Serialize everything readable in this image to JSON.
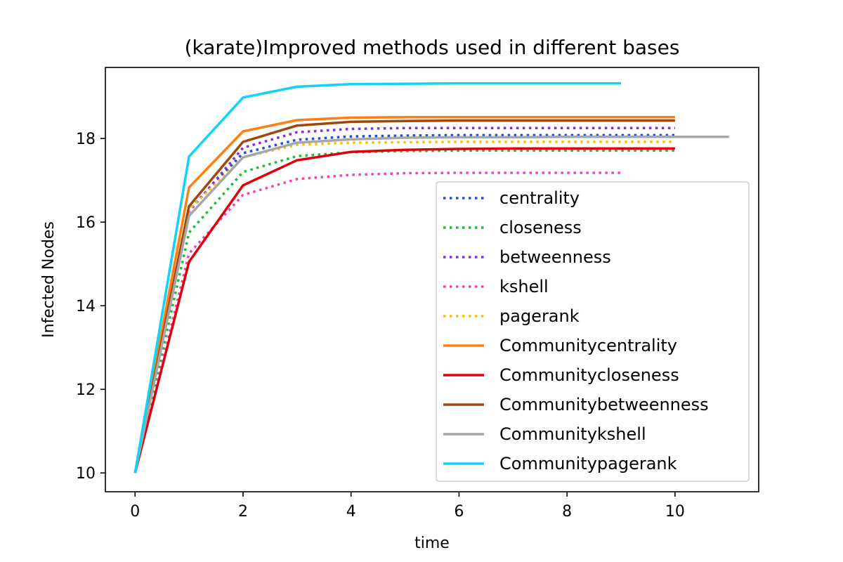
{
  "chart_data": {
    "type": "line",
    "title": "(karate)Improved methods used in different bases",
    "xlabel": "time",
    "ylabel": "Infected Nodes",
    "xlim": [
      -0.55,
      11.55
    ],
    "ylim": [
      9.55,
      19.7
    ],
    "xticks": [
      0,
      2,
      4,
      6,
      8,
      10
    ],
    "yticks": [
      10,
      12,
      14,
      16,
      18
    ],
    "grid": false,
    "legend_position": "lower-right",
    "series": [
      {
        "name": "centrality",
        "color": "#1f4fe0",
        "style": "dotted",
        "x": [
          0,
          1,
          2,
          3,
          4,
          5,
          6,
          7,
          8,
          9,
          10
        ],
        "y": [
          10.0,
          16.3,
          17.65,
          17.97,
          18.05,
          18.07,
          18.08,
          18.08,
          18.08,
          18.08,
          18.08
        ]
      },
      {
        "name": "closeness",
        "color": "#22bb33",
        "style": "dotted",
        "x": [
          0,
          1,
          2,
          3,
          4,
          5,
          6,
          7,
          8,
          9,
          10
        ],
        "y": [
          10.0,
          15.75,
          17.2,
          17.58,
          17.67,
          17.7,
          17.71,
          17.71,
          17.71,
          17.71,
          17.71
        ]
      },
      {
        "name": "betweenness",
        "color": "#8a2be2",
        "style": "dotted",
        "x": [
          0,
          1,
          2,
          3,
          4,
          5,
          6,
          7,
          8,
          9,
          10
        ],
        "y": [
          10.0,
          16.25,
          17.78,
          18.15,
          18.23,
          18.25,
          18.25,
          18.25,
          18.25,
          18.25,
          18.25
        ]
      },
      {
        "name": "kshell",
        "color": "#ee44bb",
        "style": "dotted",
        "x": [
          0,
          1,
          2,
          3,
          4,
          5,
          6,
          7,
          8,
          9
        ],
        "y": [
          10.0,
          15.25,
          16.65,
          17.03,
          17.13,
          17.17,
          17.18,
          17.18,
          17.18,
          17.18
        ]
      },
      {
        "name": "pagerank",
        "color": "#ffc000",
        "style": "dotted",
        "x": [
          0,
          1,
          2,
          3,
          4,
          5,
          6,
          7,
          8,
          9,
          10
        ],
        "y": [
          10.0,
          16.3,
          17.55,
          17.85,
          17.9,
          17.91,
          17.92,
          17.92,
          17.92,
          17.92,
          17.92
        ]
      },
      {
        "name": "Communitycentrality",
        "color": "#ff7f0e",
        "style": "solid",
        "x": [
          0,
          1,
          2,
          3,
          4,
          5,
          6,
          7,
          8,
          9,
          10
        ],
        "y": [
          10.0,
          16.83,
          18.17,
          18.44,
          18.5,
          18.51,
          18.51,
          18.51,
          18.51,
          18.51,
          18.51
        ]
      },
      {
        "name": "Communitycloseness",
        "color": "#e0000b",
        "style": "solid",
        "x": [
          0,
          1,
          2,
          3,
          4,
          5,
          6,
          7,
          8,
          9,
          10
        ],
        "y": [
          10.0,
          15.05,
          16.88,
          17.48,
          17.68,
          17.73,
          17.75,
          17.76,
          17.76,
          17.76,
          17.76
        ]
      },
      {
        "name": "Communitybetweenness",
        "color": "#a0460a",
        "style": "solid",
        "x": [
          0,
          1,
          2,
          3,
          4,
          5,
          6,
          7,
          8,
          9,
          10
        ],
        "y": [
          10.0,
          16.38,
          17.92,
          18.31,
          18.4,
          18.42,
          18.43,
          18.43,
          18.43,
          18.43,
          18.43
        ]
      },
      {
        "name": "Communitykshell",
        "color": "#a6a6a6",
        "style": "solid",
        "x": [
          0,
          1,
          2,
          3,
          4,
          5,
          6,
          7,
          8,
          9,
          10,
          11
        ],
        "y": [
          10.0,
          16.15,
          17.55,
          17.9,
          17.98,
          18.02,
          18.03,
          18.03,
          18.04,
          18.04,
          18.04,
          18.04
        ]
      },
      {
        "name": "Communitypagerank",
        "color": "#11d3f5",
        "style": "solid",
        "x": [
          0,
          1,
          2,
          3,
          4,
          5,
          6,
          7,
          8,
          9
        ],
        "y": [
          10.0,
          17.57,
          18.98,
          19.24,
          19.3,
          19.31,
          19.32,
          19.32,
          19.32,
          19.32
        ]
      }
    ]
  }
}
